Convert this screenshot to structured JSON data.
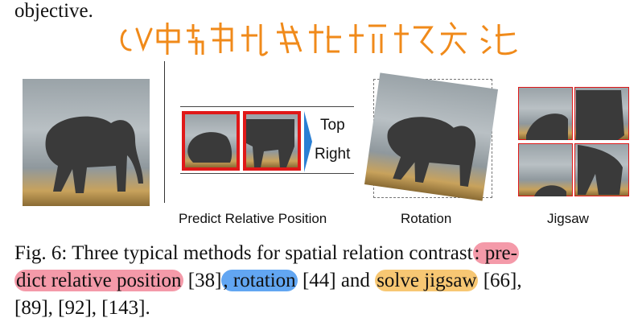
{
  "top_text": "objective.",
  "annotation": "CV中常用的数据转换方法",
  "figure": {
    "sub_labels": {
      "top": "Top",
      "right": "Right"
    },
    "captions": [
      "Predict Relative Position",
      "Rotation",
      "Jigsaw"
    ]
  },
  "caption": {
    "prefix": "Fig. 6: Three typical methods for spatial relation contrast",
    "hl1": ": pre-",
    "hl1b": "dict relative position",
    "ref1": " [38]",
    "hl2": ", rotation",
    "ref2": " [44] and ",
    "hl3": "solve jigsaw",
    "ref3": " [66],",
    "line3": "[89], [92], [143]."
  },
  "colors": {
    "box_red": "#e01818",
    "arrow_blue": "#2a7fd4",
    "highlight_red": "#f0788c",
    "highlight_blue": "#4696f0",
    "highlight_orange": "#f5b950",
    "annotation_orange": "#f08a1a"
  }
}
